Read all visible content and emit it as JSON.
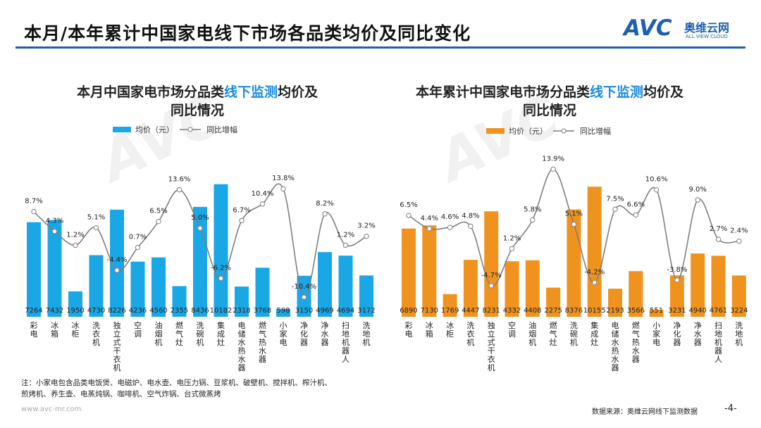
{
  "header": {
    "title": "本月/本年累计中国家电线下市场各品类均价及同比变化"
  },
  "logo": {
    "text": "AVC",
    "cn": "奥维云网",
    "en": "ALL VIEW CLOUD"
  },
  "chart_data": [
    {
      "type": "bar+line",
      "title_pre": "本月中国家电市场分品类",
      "title_hl": "线下监测",
      "title_post": "均价及",
      "title_line2": "同比情况",
      "bar_color": "#1aa7e6",
      "line_color": "#7f7f7f",
      "legend": [
        "均价（元）",
        "同比增幅"
      ],
      "categories": [
        "彩电",
        "冰箱",
        "冰柜",
        "洗衣机",
        "独立式干衣机",
        "空调",
        "油烟机",
        "燃气灶",
        "洗碗机",
        "集成灶",
        "电储水热水器",
        "燃气热水器",
        "小家电",
        "净化器",
        "净水器",
        "扫地机器人",
        "洗地机"
      ],
      "values": [
        7264,
        7432,
        1950,
        4730,
        8226,
        4236,
        4560,
        2355,
        8436,
        10182,
        2318,
        3768,
        598,
        3150,
        4969,
        4694,
        3172
      ],
      "yoy": [
        8.7,
        4.3,
        1.2,
        5.1,
        -4.4,
        0.7,
        6.5,
        13.6,
        5.0,
        -6.2,
        6.7,
        10.4,
        13.8,
        -10.4,
        8.2,
        1.2,
        3.2
      ]
    },
    {
      "type": "bar+line",
      "title_pre": "本年累计中国家电市场分品类",
      "title_hl": "线下监测",
      "title_post": "均价及",
      "title_line2": "同比情况",
      "bar_color": "#f0931e",
      "line_color": "#7f7f7f",
      "legend": [
        "均价（元）",
        "同比增幅"
      ],
      "categories": [
        "彩电",
        "冰箱",
        "冰柜",
        "洗衣机",
        "独立式干衣机",
        "空调",
        "油烟机",
        "燃气灶",
        "洗碗机",
        "集成灶",
        "电储水热水器",
        "燃气热水器",
        "小家电",
        "净化器",
        "净水器",
        "扫地机器人",
        "洗地机"
      ],
      "values": [
        6890,
        7130,
        1769,
        4447,
        8231,
        4332,
        4408,
        2275,
        8376,
        10155,
        2193,
        3566,
        551,
        3231,
        4940,
        4761,
        3224
      ],
      "yoy": [
        6.5,
        4.4,
        4.6,
        4.8,
        -4.7,
        1.2,
        5.8,
        13.9,
        5.1,
        -4.2,
        7.5,
        6.6,
        10.6,
        -3.8,
        9.0,
        2.7,
        2.4
      ]
    }
  ],
  "footer": {
    "note1": "注：小家电包含品类电饭煲、电磁炉、电水壶、电压力锅、豆浆机、破壁机、搅拌机、榨汁机、",
    "note2": "煎烤机、养生壶、电蒸炖锅、咖啡机、空气炸锅、台式微蒸烤",
    "url": "www.avc-mr.com",
    "source": "数据来源：奥维云网线下监测数据",
    "page": "-4-"
  }
}
